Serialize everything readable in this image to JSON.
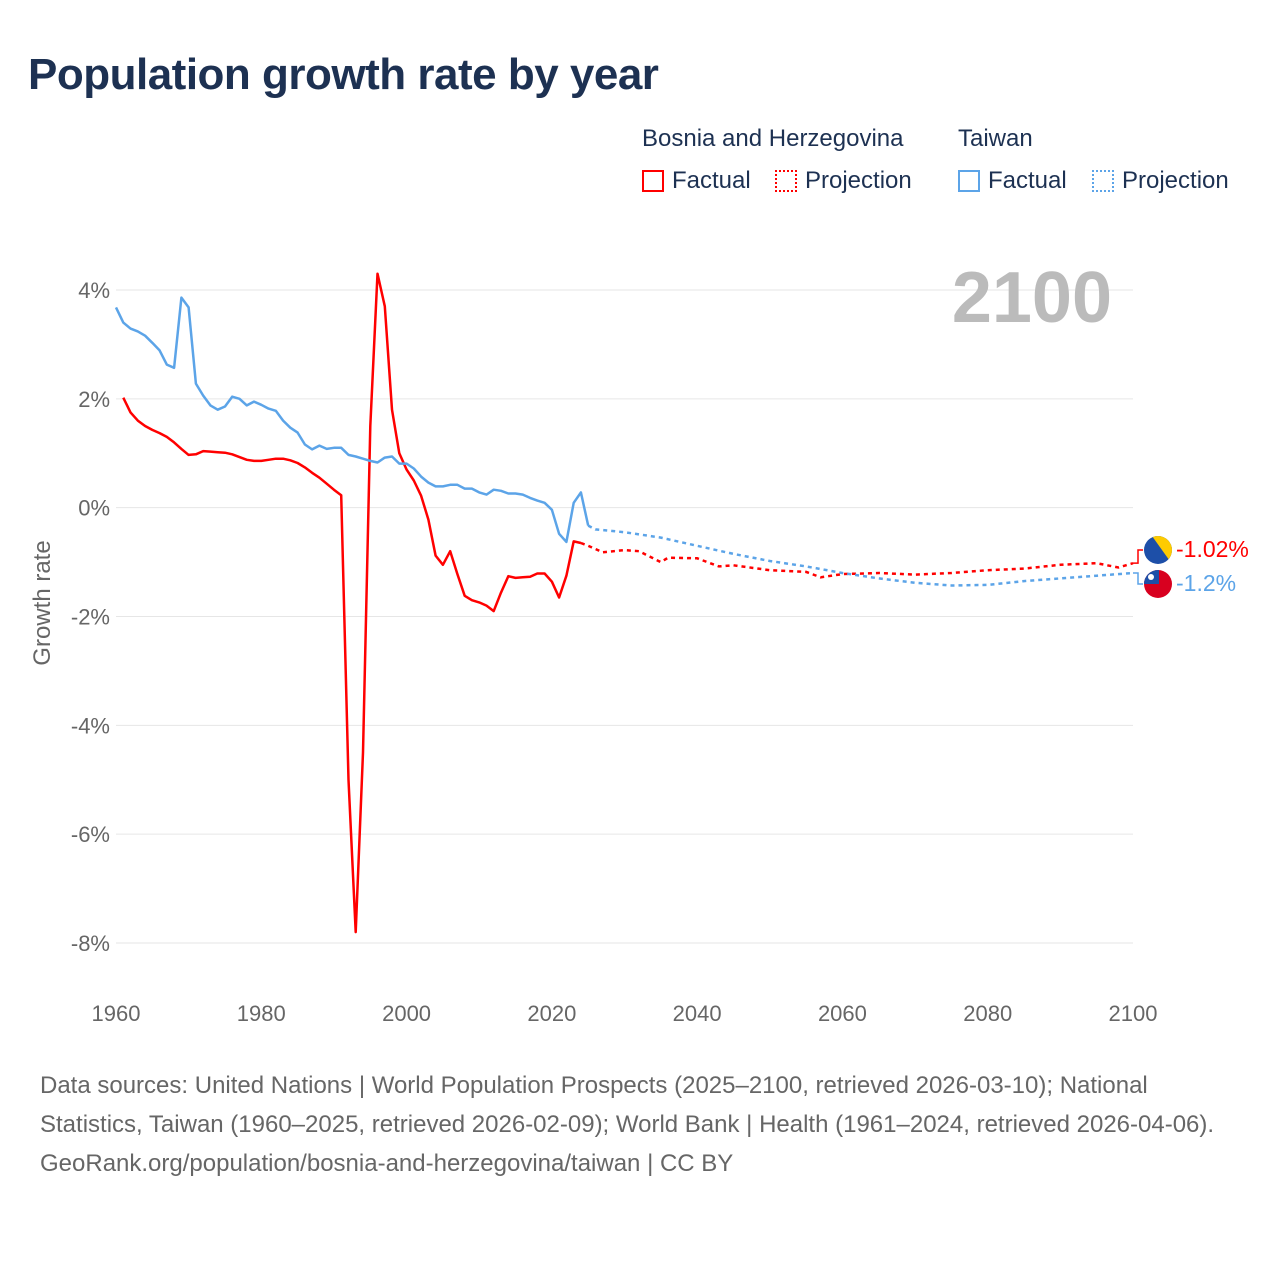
{
  "title": "Population growth rate by year",
  "legend": {
    "groups": [
      {
        "name": "Bosnia and Herzegovina",
        "factual": "Factual",
        "projection": "Projection",
        "color": "#ff0000"
      },
      {
        "name": "Taiwan",
        "factual": "Factual",
        "projection": "Projection",
        "color": "#5ca4e8"
      }
    ]
  },
  "year_label": "2100",
  "end_labels": {
    "bosnia": "-1.02%",
    "taiwan": "-1.2%"
  },
  "footer": {
    "sources": "Data sources: United Nations | World Population Prospects (2025–2100, retrieved 2026-03-10); National Statistics, Taiwan (1960–2025, retrieved 2026-02-09); World Bank | Health (1961–2024, retrieved 2026-04-06).",
    "credit": "GeoRank.org/population/bosnia-and-herzegovina/taiwan | CC BY"
  },
  "chart_data": {
    "type": "line",
    "title": "Population growth rate by year",
    "xlabel": "",
    "ylabel": "Growth rate",
    "xlim": [
      1960,
      2100
    ],
    "ylim": [
      -8,
      4
    ],
    "x_ticks": [
      "1960",
      "1980",
      "2000",
      "2020",
      "2040",
      "2060",
      "2080",
      "2100"
    ],
    "y_ticks": [
      "4%",
      "2%",
      "0%",
      "-2%",
      "-4%",
      "-6%",
      "-8%"
    ],
    "grid": true,
    "legend_position": "top-right",
    "series": [
      {
        "name": "Bosnia and Herzegovina",
        "color": "#ff0000",
        "factual": {
          "x": [
            1961,
            1962,
            1963,
            1964,
            1965,
            1966,
            1967,
            1968,
            1969,
            1970,
            1971,
            1972,
            1973,
            1974,
            1975,
            1976,
            1977,
            1978,
            1979,
            1980,
            1981,
            1982,
            1983,
            1984,
            1985,
            1986,
            1987,
            1988,
            1989,
            1990,
            1991,
            1992,
            1993,
            1994,
            1995,
            1996,
            1997,
            1998,
            1999,
            2000,
            2001,
            2002,
            2003,
            2004,
            2005,
            2006,
            2007,
            2008,
            2009,
            2010,
            2011,
            2012,
            2013,
            2014,
            2015,
            2016,
            2017,
            2018,
            2019,
            2020,
            2021,
            2022,
            2023,
            2024
          ],
          "y": [
            2.02,
            1.75,
            1.6,
            1.5,
            1.43,
            1.37,
            1.3,
            1.2,
            1.08,
            0.97,
            0.98,
            1.04,
            1.03,
            1.02,
            1.01,
            0.98,
            0.93,
            0.88,
            0.86,
            0.86,
            0.88,
            0.9,
            0.9,
            0.87,
            0.82,
            0.74,
            0.64,
            0.55,
            0.44,
            0.33,
            0.23,
            -5.0,
            -7.8,
            -4.5,
            1.5,
            4.3,
            3.7,
            1.8,
            1.0,
            0.7,
            0.5,
            0.22,
            -0.22,
            -0.88,
            -1.05,
            -0.8,
            -1.22,
            -1.62,
            -1.7,
            -1.74,
            -1.8,
            -1.9,
            -1.56,
            -1.26,
            -1.29,
            -1.28,
            -1.27,
            -1.21,
            -1.21,
            -1.36,
            -1.65,
            -1.25,
            -0.62,
            -0.65
          ]
        },
        "projection": {
          "x": [
            2024,
            2025,
            2027,
            2030,
            2032,
            2035,
            2036,
            2040,
            2043,
            2045,
            2050,
            2055,
            2057,
            2060,
            2065,
            2070,
            2075,
            2080,
            2085,
            2090,
            2095,
            2098,
            2100
          ],
          "y": [
            -0.65,
            -0.7,
            -0.82,
            -0.78,
            -0.8,
            -1.0,
            -0.92,
            -0.93,
            -1.08,
            -1.06,
            -1.15,
            -1.18,
            -1.28,
            -1.22,
            -1.2,
            -1.23,
            -1.2,
            -1.15,
            -1.12,
            -1.05,
            -1.02,
            -1.1,
            -1.02
          ]
        }
      },
      {
        "name": "Taiwan",
        "color": "#5ca4e8",
        "factual": {
          "x": [
            1960,
            1961,
            1962,
            1963,
            1964,
            1965,
            1966,
            1967,
            1968,
            1969,
            1970,
            1971,
            1972,
            1973,
            1974,
            1975,
            1976,
            1977,
            1978,
            1979,
            1980,
            1981,
            1982,
            1983,
            1984,
            1985,
            1986,
            1987,
            1988,
            1989,
            1990,
            1991,
            1992,
            1993,
            1994,
            1995,
            1996,
            1997,
            1998,
            1999,
            2000,
            2001,
            2002,
            2003,
            2004,
            2005,
            2006,
            2007,
            2008,
            2009,
            2010,
            2011,
            2012,
            2013,
            2014,
            2015,
            2016,
            2017,
            2018,
            2019,
            2020,
            2021,
            2022,
            2023,
            2024,
            2025
          ],
          "y": [
            3.68,
            3.4,
            3.29,
            3.24,
            3.16,
            3.03,
            2.89,
            2.63,
            2.57,
            3.86,
            3.68,
            2.28,
            2.06,
            1.88,
            1.8,
            1.86,
            2.04,
            2.0,
            1.88,
            1.95,
            1.89,
            1.82,
            1.78,
            1.6,
            1.47,
            1.38,
            1.16,
            1.07,
            1.14,
            1.08,
            1.1,
            1.1,
            0.97,
            0.94,
            0.9,
            0.86,
            0.83,
            0.92,
            0.94,
            0.81,
            0.81,
            0.72,
            0.57,
            0.46,
            0.39,
            0.39,
            0.42,
            0.42,
            0.35,
            0.35,
            0.28,
            0.24,
            0.33,
            0.31,
            0.26,
            0.26,
            0.24,
            0.18,
            0.13,
            0.09,
            -0.04,
            -0.48,
            -0.63,
            0.09,
            0.28,
            -0.33
          ]
        },
        "projection": {
          "x": [
            2025,
            2026,
            2030,
            2035,
            2040,
            2045,
            2050,
            2055,
            2060,
            2065,
            2070,
            2075,
            2080,
            2085,
            2090,
            2095,
            2100
          ],
          "y": [
            -0.33,
            -0.4,
            -0.45,
            -0.55,
            -0.7,
            -0.85,
            -0.98,
            -1.08,
            -1.2,
            -1.3,
            -1.38,
            -1.43,
            -1.42,
            -1.35,
            -1.3,
            -1.25,
            -1.2
          ]
        }
      }
    ]
  }
}
